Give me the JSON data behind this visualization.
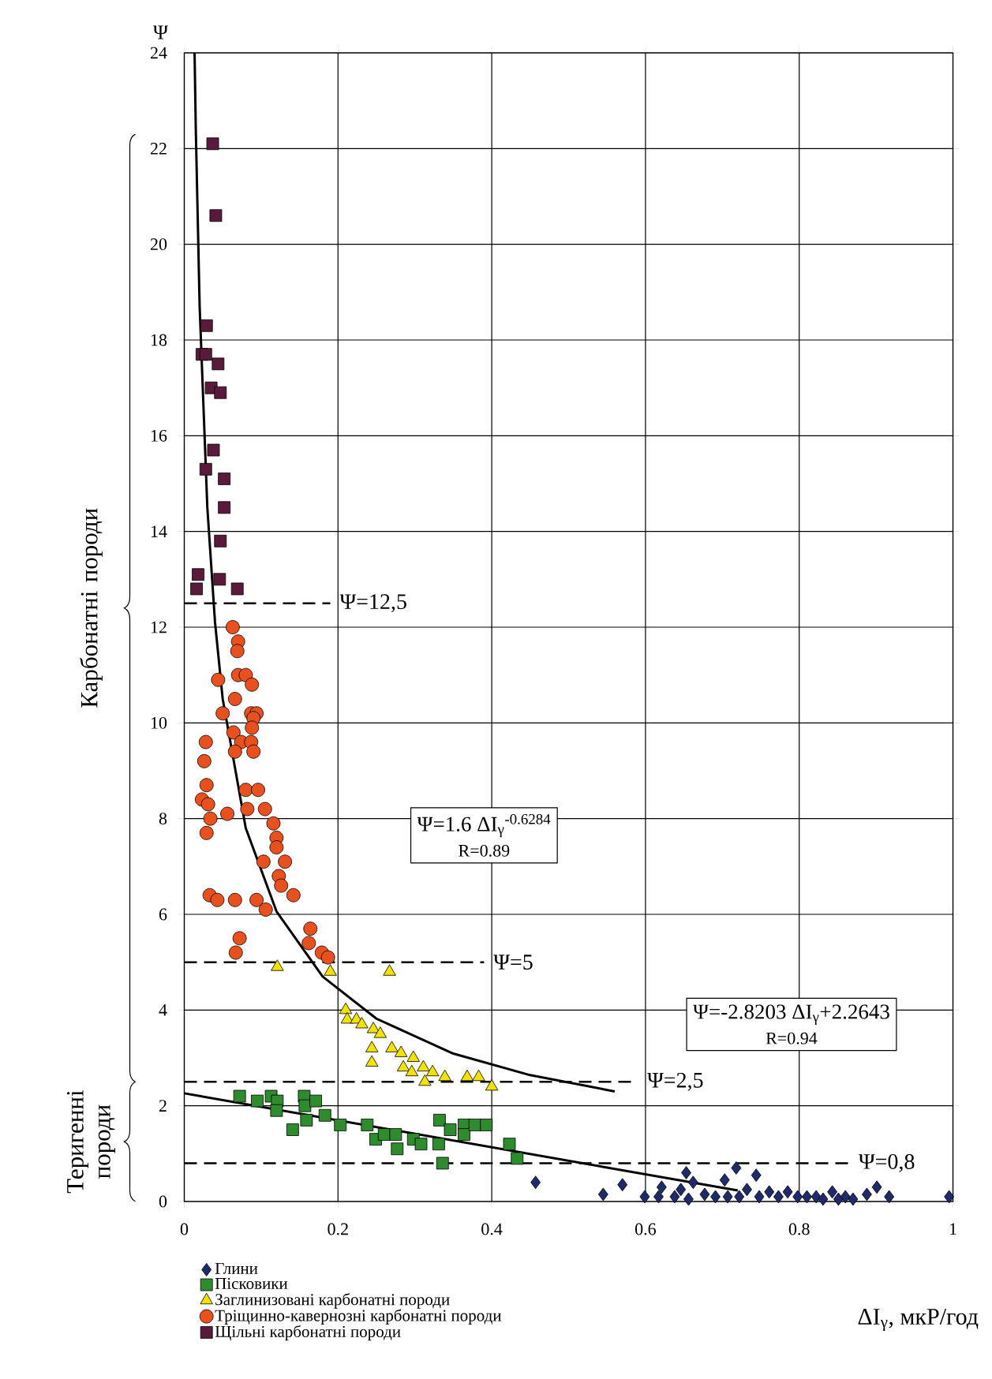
{
  "chart_data": {
    "type": "scatter",
    "xlabel": "ΔI$_{γ}$, мкР/год",
    "ylabel": "Ψ",
    "xlim": [
      0,
      1
    ],
    "ylim": [
      0,
      24
    ],
    "xticks": [
      0,
      0.2,
      0.4,
      0.6,
      0.8,
      1
    ],
    "yticks": [
      0,
      2,
      4,
      6,
      8,
      10,
      12,
      14,
      16,
      18,
      20,
      22,
      24
    ],
    "grid": true,
    "legend": "bottom",
    "series": [
      {
        "name": "Глини",
        "color": "#1f2a6b",
        "marker": "diamond",
        "x": [
          0.457,
          0.545,
          0.57,
          0.599,
          0.617,
          0.621,
          0.638,
          0.646,
          0.653,
          0.656,
          0.662,
          0.677,
          0.691,
          0.703,
          0.707,
          0.718,
          0.722,
          0.732,
          0.744,
          0.748,
          0.761,
          0.773,
          0.785,
          0.798,
          0.81,
          0.822,
          0.831,
          0.843,
          0.851,
          0.86,
          0.87,
          0.888,
          0.901,
          0.917,
          0.995
        ],
        "values": [
          0.4,
          0.15,
          0.35,
          0.1,
          0.1,
          0.3,
          0.1,
          0.25,
          0.6,
          0.05,
          0.4,
          0.15,
          0.1,
          0.45,
          0.1,
          0.7,
          0.1,
          0.25,
          0.55,
          0.1,
          0.2,
          0.1,
          0.2,
          0.1,
          0.1,
          0.1,
          0.05,
          0.2,
          0.05,
          0.1,
          0.05,
          0.15,
          0.3,
          0.1,
          0.1
        ]
      },
      {
        "name": "Пісковики",
        "color": "#2e8b2e",
        "marker": "square",
        "x": [
          0.072,
          0.095,
          0.113,
          0.121,
          0.12,
          0.156,
          0.157,
          0.171,
          0.159,
          0.141,
          0.183,
          0.203,
          0.238,
          0.249,
          0.26,
          0.275,
          0.277,
          0.298,
          0.308,
          0.331,
          0.336,
          0.332,
          0.346,
          0.364,
          0.364,
          0.378,
          0.393,
          0.423,
          0.433
        ],
        "values": [
          2.2,
          2.1,
          2.2,
          2.1,
          1.9,
          2.2,
          2.0,
          2.1,
          1.7,
          1.5,
          1.8,
          1.6,
          1.6,
          1.3,
          1.4,
          1.4,
          1.1,
          1.3,
          1.2,
          1.2,
          0.8,
          1.7,
          1.5,
          1.6,
          1.4,
          1.6,
          1.6,
          1.2,
          0.9
        ]
      },
      {
        "name": "Заглинизовані карбонатні породи",
        "color": "#f2e200",
        "marker": "triangle",
        "x": [
          0.121,
          0.19,
          0.267,
          0.21,
          0.212,
          0.224,
          0.231,
          0.246,
          0.255,
          0.244,
          0.27,
          0.282,
          0.298,
          0.244,
          0.285,
          0.296,
          0.311,
          0.323,
          0.313,
          0.339,
          0.368,
          0.383,
          0.4
        ],
        "values": [
          4.9,
          4.8,
          4.8,
          4.0,
          3.8,
          3.8,
          3.7,
          3.6,
          3.5,
          3.2,
          3.2,
          3.1,
          3.0,
          2.9,
          2.8,
          2.7,
          2.8,
          2.7,
          2.5,
          2.6,
          2.6,
          2.6,
          2.4
        ]
      },
      {
        "name": "Тріщинно-кавернозні карбонатні породи",
        "color": "#e8501e",
        "marker": "circle",
        "x": [
          0.063,
          0.07,
          0.069,
          0.044,
          0.07,
          0.08,
          0.088,
          0.066,
          0.05,
          0.087,
          0.094,
          0.09,
          0.064,
          0.088,
          0.028,
          0.074,
          0.087,
          0.066,
          0.09,
          0.026,
          0.029,
          0.08,
          0.096,
          0.023,
          0.031,
          0.056,
          0.082,
          0.105,
          0.034,
          0.116,
          0.029,
          0.12,
          0.12,
          0.103,
          0.131,
          0.123,
          0.126,
          0.142,
          0.033,
          0.043,
          0.066,
          0.094,
          0.106,
          0.164,
          0.162,
          0.072,
          0.067,
          0.179,
          0.187
        ],
        "values": [
          12.0,
          11.7,
          11.5,
          10.9,
          11.0,
          11.0,
          10.8,
          10.5,
          10.2,
          10.2,
          10.2,
          10.1,
          9.8,
          9.9,
          9.6,
          9.6,
          9.6,
          9.4,
          9.4,
          9.2,
          8.7,
          8.6,
          8.6,
          8.4,
          8.3,
          8.1,
          8.2,
          8.2,
          8.0,
          7.9,
          7.7,
          7.6,
          7.4,
          7.1,
          7.1,
          6.8,
          6.6,
          6.4,
          6.4,
          6.3,
          6.3,
          6.3,
          6.1,
          5.7,
          5.4,
          5.5,
          5.2,
          5.2,
          5.1
        ]
      },
      {
        "name": "Щільні карбонатні породи",
        "color": "#5a1a3c",
        "marker": "square",
        "x": [
          0.037,
          0.041,
          0.029,
          0.023,
          0.028,
          0.044,
          0.035,
          0.047,
          0.038,
          0.028,
          0.052,
          0.052,
          0.047,
          0.018,
          0.016,
          0.046,
          0.069
        ],
        "values": [
          22.1,
          20.6,
          18.3,
          17.7,
          17.7,
          17.5,
          17.0,
          16.9,
          15.7,
          15.3,
          15.1,
          14.5,
          13.8,
          13.1,
          12.8,
          13.0,
          12.8
        ]
      },
      {
        "type": "line",
        "color": "#000000",
        "line_style": "solid",
        "x": [
          0.0134,
          0.015,
          0.02,
          0.03,
          0.04,
          0.05,
          0.08,
          0.12,
          0.18,
          0.25,
          0.35,
          0.45,
          0.56
        ],
        "values": [
          24,
          22.4,
          18.7,
          14.5,
          12.1,
          10.5,
          7.8,
          6.06,
          4.7,
          3.82,
          3.09,
          2.64,
          2.3
        ]
      },
      {
        "type": "line",
        "color": "#000000",
        "line_style": "solid",
        "x": [
          0,
          0.72
        ],
        "values": [
          2.26,
          0.23
        ]
      }
    ],
    "ref_lines": [
      {
        "axis": "y",
        "value": 12.5,
        "label": "Ψ=12,5",
        "line_style": "dashed"
      },
      {
        "axis": "y",
        "value": 5,
        "label": "Ψ=5",
        "line_style": "dashed"
      },
      {
        "axis": "y",
        "value": 2.5,
        "label": "Ψ=2,5",
        "line_style": "dashed"
      },
      {
        "axis": "y",
        "value": 0.8,
        "label": "Ψ=0,8",
        "line_style": "dashed"
      }
    ],
    "annotations": [
      "Ψ=1.6 ΔI$_{γ}$$^{-0.6284}$",
      "R=0.89",
      "Ψ=-2.8203 ΔI$_{γ}$+2.2643",
      "R=0.94",
      "Карбонатні породи",
      "Теригенні породи"
    ]
  }
}
